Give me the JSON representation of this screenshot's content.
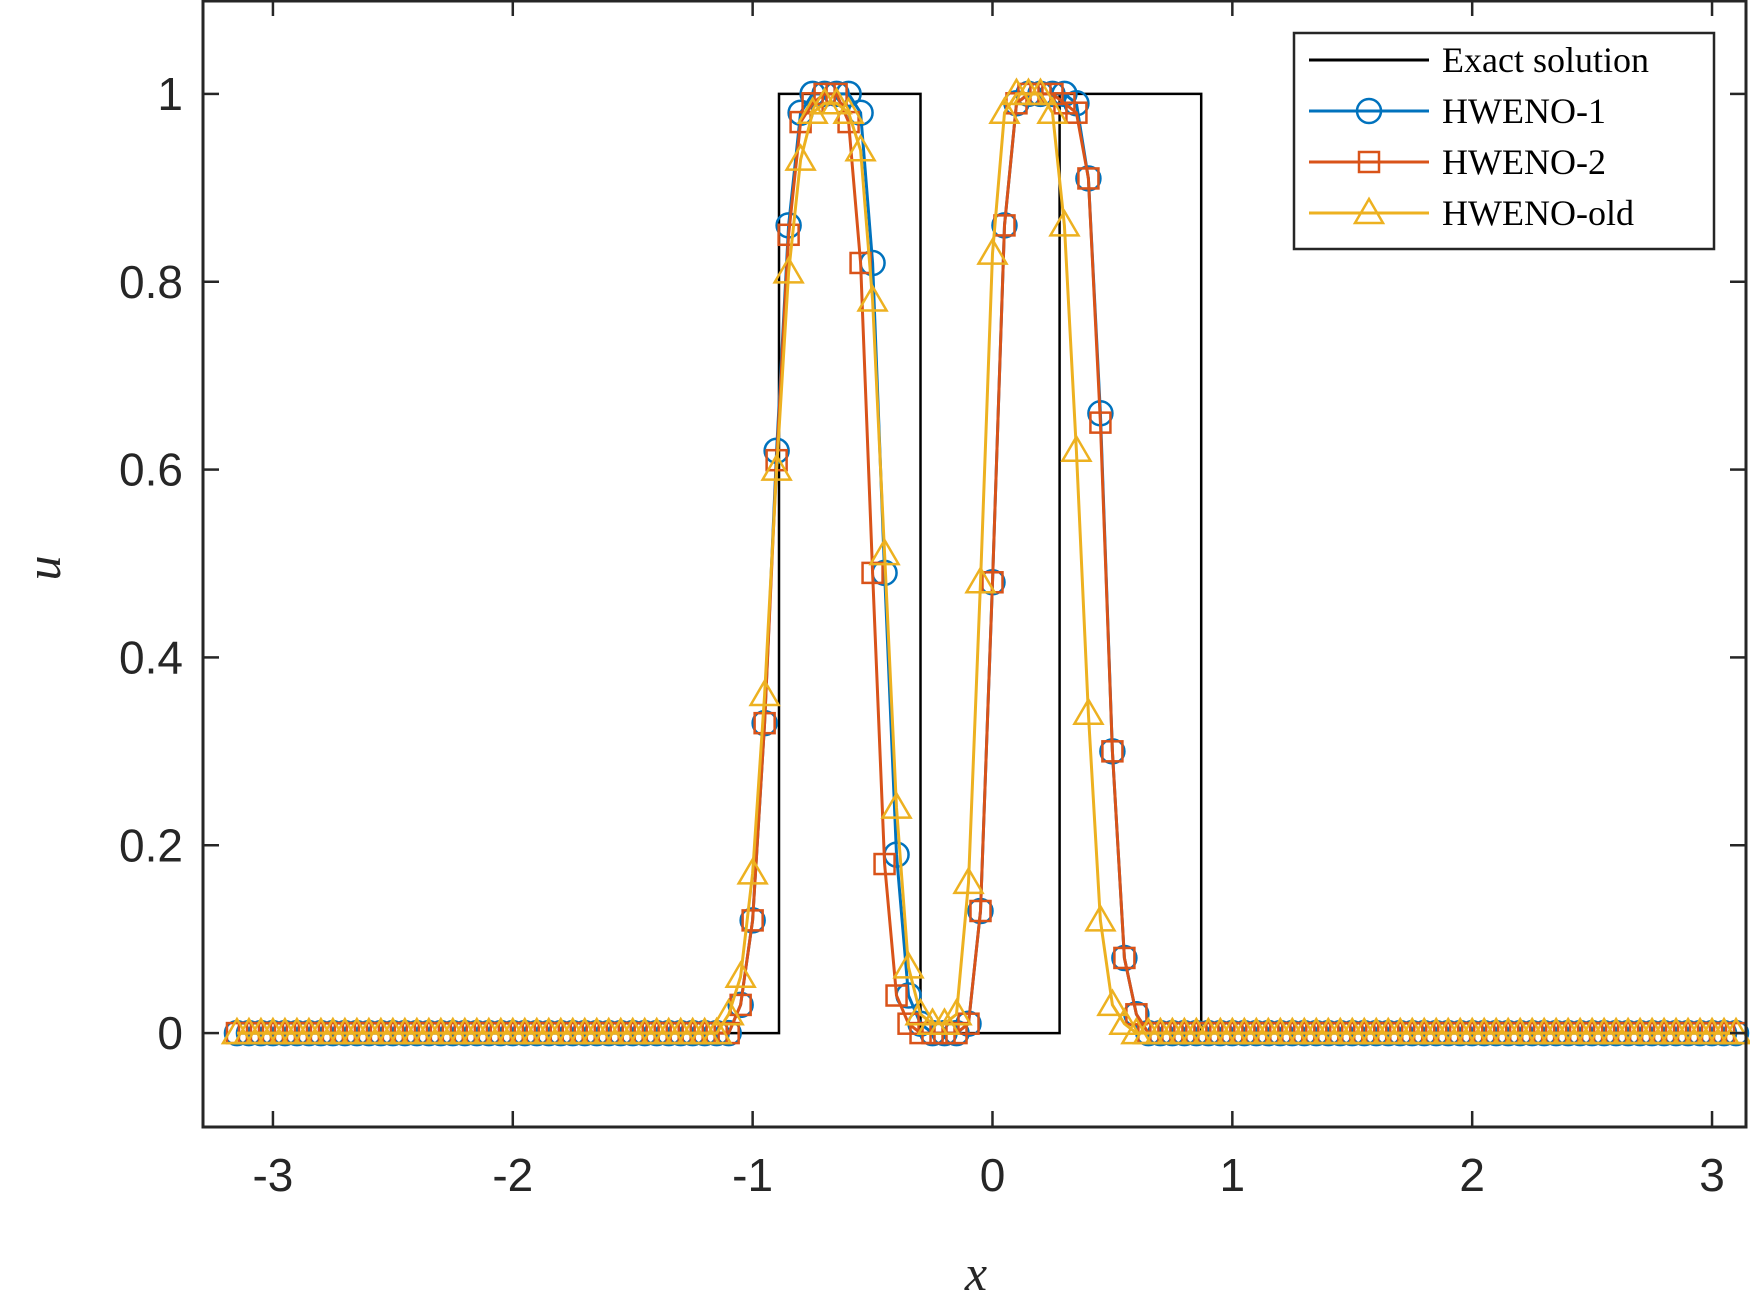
{
  "chart_data": {
    "type": "line",
    "xlabel": "x",
    "ylabel": "u",
    "xlim": [
      -3.2916,
      3.1416
    ],
    "ylim": [
      -0.1,
      1.1
    ],
    "xticks": [
      -3,
      -2,
      -1,
      0,
      1,
      2,
      3
    ],
    "yticks": [
      0,
      0.2,
      0.4,
      0.6,
      0.8,
      1
    ],
    "xtick_labels": [
      "-3",
      "-2",
      "-1",
      "0",
      "1",
      "2",
      "3"
    ],
    "ytick_labels": [
      "0",
      "0.2",
      "0.4",
      "0.6",
      "0.8",
      "1"
    ],
    "grid": false,
    "legend_position": "top-right",
    "series": [
      {
        "name": "Exact solution",
        "color": "#000000",
        "marker": "none",
        "x": [
          -3.1416,
          -0.89,
          -0.89,
          -0.3,
          -0.3,
          0.28,
          0.28,
          0.87,
          0.87,
          3.1416
        ],
        "y": [
          0,
          0,
          1,
          1,
          0,
          0,
          1,
          1,
          0,
          0
        ]
      },
      {
        "name": "HWENO-1",
        "color": "#0072BD",
        "marker": "circle",
        "x": [
          -1.05,
          -1.0,
          -0.95,
          -0.9,
          -0.85,
          -0.8,
          -0.75,
          -0.7,
          -0.65,
          -0.6,
          -0.55,
          -0.5,
          -0.45,
          -0.4,
          -0.35,
          -0.3,
          -0.25,
          -0.2,
          -0.15,
          -0.1,
          -0.05,
          0.0,
          0.05,
          0.1,
          0.15,
          0.2,
          0.25,
          0.3,
          0.35,
          0.4,
          0.45,
          0.5,
          0.55,
          0.6,
          0.65,
          0.7,
          0.75,
          0.8,
          0.85,
          0.9,
          0.95,
          1.0,
          1.05
        ],
        "y": [
          0.03,
          0.12,
          0.33,
          0.62,
          0.86,
          0.98,
          1.0,
          1.0,
          1.0,
          1.0,
          0.98,
          0.82,
          0.49,
          0.19,
          0.04,
          0.01,
          0.0,
          0.0,
          0.0,
          0.01,
          0.13,
          0.48,
          0.86,
          0.99,
          1.0,
          1.0,
          1.0,
          1.0,
          0.99,
          0.91,
          0.66,
          0.3,
          0.08,
          0.02,
          0.0,
          0.0,
          0.0,
          0.0,
          0.0,
          0.0,
          0.0,
          0.0,
          0.0
        ]
      },
      {
        "name": "HWENO-2",
        "color": "#D95319",
        "marker": "square",
        "x": [
          -1.05,
          -1.0,
          -0.95,
          -0.9,
          -0.85,
          -0.8,
          -0.75,
          -0.7,
          -0.65,
          -0.6,
          -0.55,
          -0.5,
          -0.45,
          -0.4,
          -0.35,
          -0.3,
          -0.25,
          -0.2,
          -0.15,
          -0.1,
          -0.05,
          0.0,
          0.05,
          0.1,
          0.15,
          0.2,
          0.25,
          0.3,
          0.35,
          0.4,
          0.45,
          0.5,
          0.55,
          0.6,
          0.65,
          0.7,
          0.75,
          0.8,
          0.85,
          0.9,
          0.95,
          1.0,
          1.05
        ],
        "y": [
          0.03,
          0.12,
          0.33,
          0.61,
          0.85,
          0.97,
          0.99,
          1.0,
          1.0,
          0.97,
          0.82,
          0.49,
          0.18,
          0.04,
          0.01,
          0.0,
          0.0,
          0.0,
          0.0,
          0.01,
          0.13,
          0.48,
          0.86,
          0.99,
          1.0,
          1.0,
          1.0,
          0.99,
          0.98,
          0.91,
          0.65,
          0.3,
          0.08,
          0.02,
          0.0,
          0.0,
          0.0,
          0.0,
          0.0,
          0.0,
          0.0,
          0.0,
          0.0
        ]
      },
      {
        "name": "HWENO-old",
        "color": "#EDB120",
        "marker": "triangle",
        "x": [
          -1.1,
          -1.05,
          -1.0,
          -0.95,
          -0.9,
          -0.85,
          -0.8,
          -0.75,
          -0.7,
          -0.65,
          -0.6,
          -0.55,
          -0.5,
          -0.45,
          -0.4,
          -0.35,
          -0.3,
          -0.25,
          -0.2,
          -0.15,
          -0.1,
          -0.05,
          0.0,
          0.05,
          0.1,
          0.15,
          0.2,
          0.25,
          0.3,
          0.35,
          0.4,
          0.45,
          0.5,
          0.55,
          0.6,
          0.65,
          0.7,
          0.75,
          0.8,
          0.85,
          0.9,
          0.95,
          1.0,
          1.05,
          1.1
        ],
        "y": [
          0.02,
          0.06,
          0.17,
          0.36,
          0.6,
          0.81,
          0.93,
          0.98,
          0.99,
          0.99,
          0.98,
          0.94,
          0.78,
          0.51,
          0.24,
          0.07,
          0.02,
          0.01,
          0.01,
          0.02,
          0.16,
          0.48,
          0.83,
          0.98,
          1.0,
          1.0,
          1.0,
          0.98,
          0.86,
          0.62,
          0.34,
          0.12,
          0.03,
          0.01,
          0.0,
          0.0,
          0.0,
          0.0,
          0.0,
          0.0,
          0.0,
          0.0,
          0.0,
          0.0,
          0.0
        ]
      }
    ]
  }
}
